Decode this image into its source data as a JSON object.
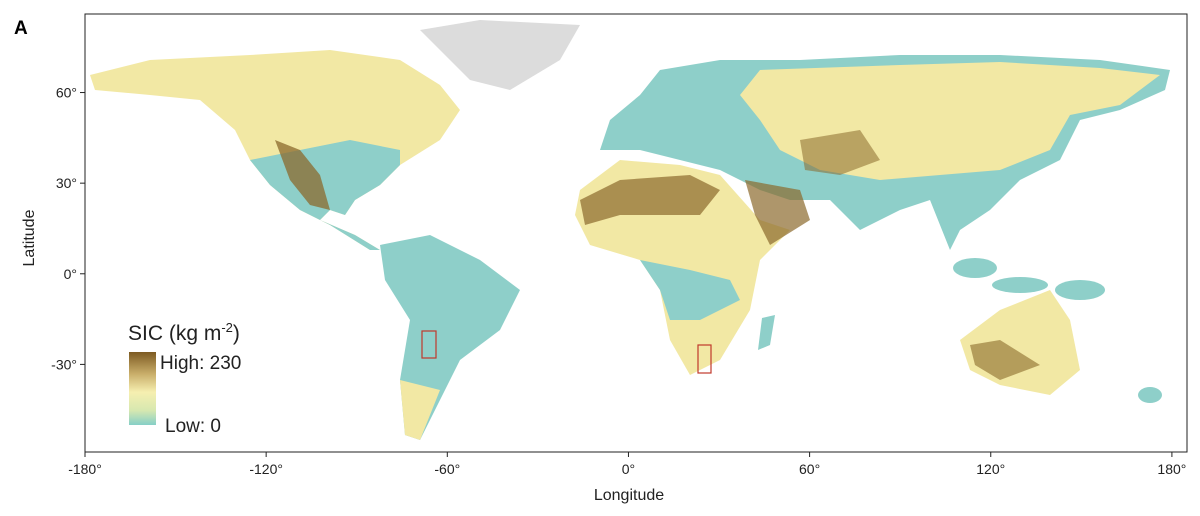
{
  "panel_label": "A",
  "map": {
    "xlabel": "Longitude",
    "ylabel": "Latitude",
    "xlim": [
      -180,
      185
    ],
    "ylim": [
      -59,
      86
    ],
    "xticks": [
      {
        "value": -180,
        "label": "-180°"
      },
      {
        "value": -120,
        "label": "-120°"
      },
      {
        "value": -60,
        "label": "-60°"
      },
      {
        "value": 0,
        "label": "0°"
      },
      {
        "value": 60,
        "label": "60°"
      },
      {
        "value": 120,
        "label": "120°"
      },
      {
        "value": 180,
        "label": "180°"
      }
    ],
    "yticks": [
      {
        "value": 60,
        "label": "60°"
      },
      {
        "value": 30,
        "label": "30°"
      },
      {
        "value": 0,
        "label": "0°"
      },
      {
        "value": -30,
        "label": "-30°"
      }
    ]
  },
  "legend": {
    "title": "SIC (kg m",
    "title_superscript": "-2",
    "title_end": ")",
    "high": "High: 230",
    "low": "Low: 0"
  }
}
